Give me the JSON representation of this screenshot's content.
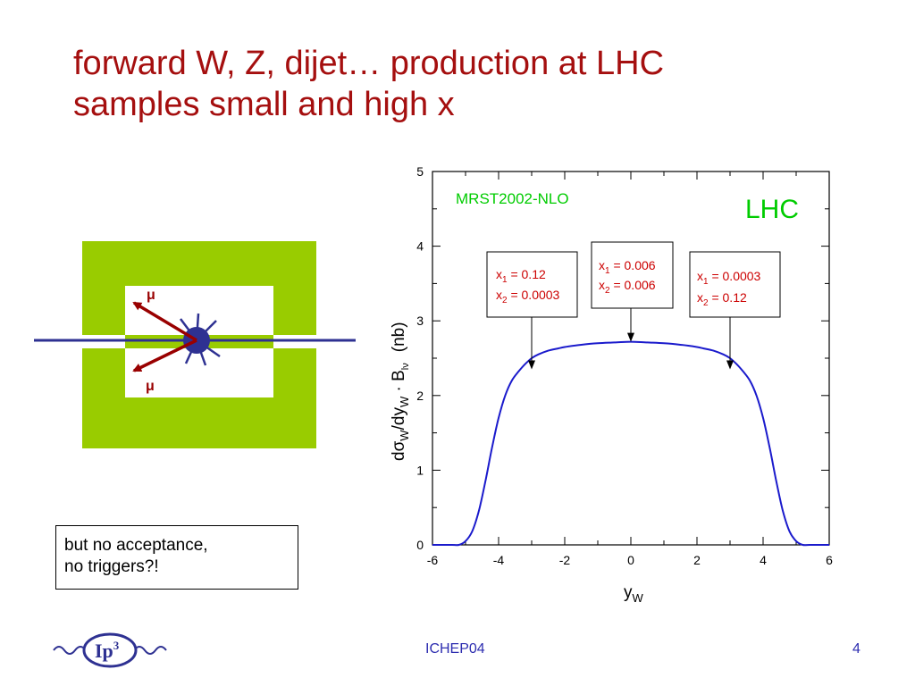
{
  "slide": {
    "title_line1": "forward W, Z, dijet… production at LHC",
    "title_line2": "samples small and high x",
    "note_line1": "but no acceptance,",
    "note_line2": "no triggers?!",
    "muon_label_top": "μ",
    "muon_label_bottom": "μ",
    "footer_center": "ICHEP04",
    "footer_right": "4",
    "logo_text": "Ip",
    "logo_sup": "3"
  },
  "colors": {
    "title": "#a50f0f",
    "detector_green": "#99cc00",
    "beam": "#2e3192",
    "muon": "#990000",
    "curve": "#1a1acc",
    "mrst_label": "#00cc00",
    "box_text": "#cc0000",
    "footer": "#2d2db0"
  },
  "chart_data": {
    "type": "line",
    "title": "",
    "xlabel_main": "y",
    "xlabel_sub": "W",
    "ylabel": {
      "d": "d",
      "sigma": "σ",
      "sub_w1": "W",
      "dy": "/dy",
      "sub_w2": "W",
      "dot_b": " · B",
      "sub_lnu": "lν",
      "unit": "(nb)"
    },
    "xlim": [
      -6,
      6
    ],
    "ylim": [
      0,
      5
    ],
    "xticks": [
      -6,
      -4,
      -2,
      0,
      2,
      4,
      6
    ],
    "yticks": [
      0,
      1,
      2,
      3,
      4,
      5
    ],
    "series": [
      {
        "x": [
          -6,
          -5.4,
          -5.2,
          -5.0,
          -4.8,
          -4.6,
          -4.4,
          -4.2,
          -4.0,
          -3.8,
          -3.6,
          -3.4,
          -3.2,
          -3.0,
          -2.8,
          -2.5,
          -2.2,
          -2.0,
          -1.5,
          -1.0,
          -0.5,
          0,
          0.5,
          1.0,
          1.5,
          2.0,
          2.2,
          2.5,
          2.8,
          3.0,
          3.2,
          3.4,
          3.6,
          3.8,
          4.0,
          4.2,
          4.4,
          4.6,
          4.8,
          5.0,
          5.2,
          5.4,
          6
        ],
        "y": [
          0,
          0,
          0,
          0.05,
          0.18,
          0.45,
          0.85,
          1.3,
          1.7,
          2.0,
          2.2,
          2.32,
          2.42,
          2.5,
          2.55,
          2.6,
          2.63,
          2.65,
          2.68,
          2.7,
          2.71,
          2.72,
          2.71,
          2.7,
          2.68,
          2.65,
          2.63,
          2.6,
          2.55,
          2.5,
          2.42,
          2.32,
          2.2,
          2.0,
          1.7,
          1.3,
          0.85,
          0.45,
          0.18,
          0.05,
          0,
          0,
          0
        ]
      }
    ],
    "annotations": {
      "model": "MRST2002-NLO",
      "collider": "LHC",
      "boxes": [
        {
          "x1_label": "x",
          "x1_sub": "1",
          "x1_val": " = 0.12",
          "x2_label": "x",
          "x2_sub": "2",
          "x2_val": " = 0.0003",
          "arrow_x": -3,
          "arrow_y": 2.35
        },
        {
          "x1_label": "x",
          "x1_sub": "1",
          "x1_val": " = 0.006",
          "x2_label": "x",
          "x2_sub": "2",
          "x2_val": " = 0.006",
          "arrow_x": 0,
          "arrow_y": 2.72
        },
        {
          "x1_label": "x",
          "x1_sub": "1",
          "x1_val": " = 0.0003",
          "x2_label": "x",
          "x2_sub": "2",
          "x2_val": " = 0.12",
          "arrow_x": 3,
          "arrow_y": 2.35
        }
      ]
    }
  }
}
